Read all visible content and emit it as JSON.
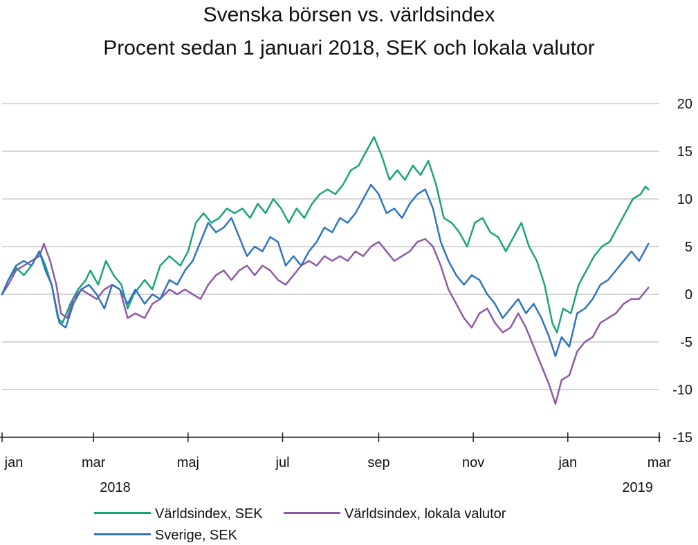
{
  "title": "Svenska börsen vs. världsindex",
  "subtitle": "Procent sedan 1 januari 2018, SEK och lokala valutor",
  "chart_data": {
    "type": "line",
    "title": "Svenska börsen vs. världsindex",
    "subtitle": "Procent sedan 1 januari 2018, SEK och lokala valutor",
    "xlabel": "",
    "ylabel": "",
    "ylim": [
      -15,
      20
    ],
    "y_ticks": [
      20,
      15,
      10,
      5,
      0,
      -5,
      -10,
      -15
    ],
    "x_range": [
      "2018-01-01",
      "2019-03-01"
    ],
    "x_ticks": [
      {
        "date": "2018-01-01",
        "label": "jan"
      },
      {
        "date": "2018-03-01",
        "label": "mar"
      },
      {
        "date": "2018-05-01",
        "label": "maj"
      },
      {
        "date": "2018-07-01",
        "label": "jul"
      },
      {
        "date": "2018-09-01",
        "label": "sep"
      },
      {
        "date": "2018-11-01",
        "label": "nov"
      },
      {
        "date": "2019-01-01",
        "label": "jan"
      },
      {
        "date": "2019-03-01",
        "label": "mar"
      }
    ],
    "year_labels": [
      {
        "date": "2018-03-15",
        "label": "2018"
      },
      {
        "date": "2019-02-15",
        "label": "2019"
      }
    ],
    "grid": "horizontal",
    "legend_position": "bottom",
    "series": [
      {
        "name": "Världsindex, SEK",
        "color": "#1aa37a",
        "points": [
          [
            "2018-01-01",
            0.0
          ],
          [
            "2018-01-05",
            1.5
          ],
          [
            "2018-01-10",
            2.8
          ],
          [
            "2018-01-15",
            2.0
          ],
          [
            "2018-01-20",
            3.0
          ],
          [
            "2018-01-25",
            4.5
          ],
          [
            "2018-01-29",
            3.0
          ],
          [
            "2018-02-02",
            1.0
          ],
          [
            "2018-02-06",
            -2.5
          ],
          [
            "2018-02-09",
            -3.0
          ],
          [
            "2018-02-14",
            -1.0
          ],
          [
            "2018-02-19",
            0.5
          ],
          [
            "2018-02-24",
            1.5
          ],
          [
            "2018-02-27",
            2.5
          ],
          [
            "2018-03-04",
            1.0
          ],
          [
            "2018-03-09",
            3.5
          ],
          [
            "2018-03-14",
            2.0
          ],
          [
            "2018-03-19",
            1.0
          ],
          [
            "2018-03-23",
            -1.5
          ],
          [
            "2018-03-27",
            0.0
          ],
          [
            "2018-04-03",
            1.5
          ],
          [
            "2018-04-08",
            0.5
          ],
          [
            "2018-04-13",
            3.0
          ],
          [
            "2018-04-19",
            4.0
          ],
          [
            "2018-04-26",
            3.0
          ],
          [
            "2018-05-01",
            4.5
          ],
          [
            "2018-05-06",
            7.5
          ],
          [
            "2018-05-11",
            8.5
          ],
          [
            "2018-05-16",
            7.5
          ],
          [
            "2018-05-21",
            8.0
          ],
          [
            "2018-05-26",
            9.0
          ],
          [
            "2018-05-31",
            8.5
          ],
          [
            "2018-06-05",
            9.0
          ],
          [
            "2018-06-10",
            8.0
          ],
          [
            "2018-06-15",
            9.5
          ],
          [
            "2018-06-20",
            8.5
          ],
          [
            "2018-06-25",
            10.0
          ],
          [
            "2018-06-30",
            9.0
          ],
          [
            "2018-07-05",
            7.5
          ],
          [
            "2018-07-10",
            9.0
          ],
          [
            "2018-07-15",
            8.0
          ],
          [
            "2018-07-20",
            9.5
          ],
          [
            "2018-07-25",
            10.5
          ],
          [
            "2018-07-30",
            11.0
          ],
          [
            "2018-08-04",
            10.5
          ],
          [
            "2018-08-09",
            11.5
          ],
          [
            "2018-08-14",
            13.0
          ],
          [
            "2018-08-19",
            13.5
          ],
          [
            "2018-08-24",
            15.0
          ],
          [
            "2018-08-29",
            16.5
          ],
          [
            "2018-09-03",
            14.5
          ],
          [
            "2018-09-08",
            12.0
          ],
          [
            "2018-09-13",
            13.0
          ],
          [
            "2018-09-18",
            12.0
          ],
          [
            "2018-09-23",
            13.5
          ],
          [
            "2018-09-28",
            12.5
          ],
          [
            "2018-10-03",
            14.0
          ],
          [
            "2018-10-08",
            11.5
          ],
          [
            "2018-10-13",
            8.0
          ],
          [
            "2018-10-18",
            7.5
          ],
          [
            "2018-10-23",
            6.5
          ],
          [
            "2018-10-28",
            5.0
          ],
          [
            "2018-11-02",
            7.5
          ],
          [
            "2018-11-07",
            8.0
          ],
          [
            "2018-11-12",
            6.5
          ],
          [
            "2018-11-17",
            6.0
          ],
          [
            "2018-11-22",
            4.5
          ],
          [
            "2018-11-27",
            6.0
          ],
          [
            "2018-12-02",
            7.5
          ],
          [
            "2018-12-07",
            5.0
          ],
          [
            "2018-12-12",
            3.5
          ],
          [
            "2018-12-17",
            1.0
          ],
          [
            "2018-12-22",
            -3.0
          ],
          [
            "2018-12-25",
            -4.0
          ],
          [
            "2018-12-29",
            -1.5
          ],
          [
            "2019-01-03",
            -2.0
          ],
          [
            "2019-01-08",
            1.0
          ],
          [
            "2019-01-13",
            2.5
          ],
          [
            "2019-01-18",
            4.0
          ],
          [
            "2019-01-23",
            5.0
          ],
          [
            "2019-01-28",
            5.5
          ],
          [
            "2019-02-02",
            7.0
          ],
          [
            "2019-02-07",
            8.5
          ],
          [
            "2019-02-12",
            10.0
          ],
          [
            "2019-02-17",
            10.5
          ],
          [
            "2019-02-20",
            11.3
          ],
          [
            "2019-02-22",
            11.0
          ]
        ]
      },
      {
        "name": "Världsindex, lokala valutor",
        "color": "#8e5aa6",
        "points": [
          [
            "2018-01-01",
            0.0
          ],
          [
            "2018-01-05",
            1.0
          ],
          [
            "2018-01-10",
            2.5
          ],
          [
            "2018-01-15",
            3.0
          ],
          [
            "2018-01-20",
            3.5
          ],
          [
            "2018-01-25",
            4.0
          ],
          [
            "2018-01-28",
            5.3
          ],
          [
            "2018-02-01",
            3.5
          ],
          [
            "2018-02-05",
            1.0
          ],
          [
            "2018-02-08",
            -2.0
          ],
          [
            "2018-02-12",
            -2.5
          ],
          [
            "2018-02-16",
            -0.5
          ],
          [
            "2018-02-21",
            0.5
          ],
          [
            "2018-02-26",
            0.0
          ],
          [
            "2018-03-03",
            -0.5
          ],
          [
            "2018-03-08",
            0.5
          ],
          [
            "2018-03-13",
            1.0
          ],
          [
            "2018-03-18",
            0.5
          ],
          [
            "2018-03-23",
            -2.5
          ],
          [
            "2018-03-28",
            -2.0
          ],
          [
            "2018-04-03",
            -2.5
          ],
          [
            "2018-04-08",
            -1.0
          ],
          [
            "2018-04-13",
            -0.5
          ],
          [
            "2018-04-19",
            0.5
          ],
          [
            "2018-04-24",
            0.0
          ],
          [
            "2018-04-29",
            0.5
          ],
          [
            "2018-05-04",
            0.0
          ],
          [
            "2018-05-09",
            -0.5
          ],
          [
            "2018-05-14",
            1.0
          ],
          [
            "2018-05-19",
            2.0
          ],
          [
            "2018-05-24",
            2.5
          ],
          [
            "2018-05-29",
            1.5
          ],
          [
            "2018-06-03",
            2.5
          ],
          [
            "2018-06-08",
            3.0
          ],
          [
            "2018-06-13",
            2.0
          ],
          [
            "2018-06-18",
            3.0
          ],
          [
            "2018-06-23",
            2.5
          ],
          [
            "2018-06-28",
            1.5
          ],
          [
            "2018-07-03",
            1.0
          ],
          [
            "2018-07-08",
            2.0
          ],
          [
            "2018-07-13",
            3.0
          ],
          [
            "2018-07-18",
            3.5
          ],
          [
            "2018-07-23",
            3.0
          ],
          [
            "2018-07-28",
            4.0
          ],
          [
            "2018-08-02",
            3.5
          ],
          [
            "2018-08-07",
            4.0
          ],
          [
            "2018-08-12",
            3.5
          ],
          [
            "2018-08-17",
            4.5
          ],
          [
            "2018-08-22",
            4.0
          ],
          [
            "2018-08-27",
            5.0
          ],
          [
            "2018-09-01",
            5.5
          ],
          [
            "2018-09-06",
            4.5
          ],
          [
            "2018-09-11",
            3.5
          ],
          [
            "2018-09-16",
            4.0
          ],
          [
            "2018-09-21",
            4.5
          ],
          [
            "2018-09-26",
            5.5
          ],
          [
            "2018-10-01",
            5.8
          ],
          [
            "2018-10-06",
            5.0
          ],
          [
            "2018-10-11",
            3.0
          ],
          [
            "2018-10-16",
            0.5
          ],
          [
            "2018-10-21",
            -1.0
          ],
          [
            "2018-10-26",
            -2.5
          ],
          [
            "2018-10-31",
            -3.5
          ],
          [
            "2018-11-05",
            -2.0
          ],
          [
            "2018-11-10",
            -1.5
          ],
          [
            "2018-11-15",
            -3.0
          ],
          [
            "2018-11-20",
            -4.0
          ],
          [
            "2018-11-25",
            -3.5
          ],
          [
            "2018-11-30",
            -2.0
          ],
          [
            "2018-12-05",
            -3.5
          ],
          [
            "2018-12-10",
            -5.5
          ],
          [
            "2018-12-15",
            -7.5
          ],
          [
            "2018-12-20",
            -9.5
          ],
          [
            "2018-12-24",
            -11.5
          ],
          [
            "2018-12-28",
            -9.0
          ],
          [
            "2019-01-02",
            -8.5
          ],
          [
            "2019-01-07",
            -6.0
          ],
          [
            "2019-01-12",
            -5.0
          ],
          [
            "2019-01-17",
            -4.5
          ],
          [
            "2019-01-22",
            -3.0
          ],
          [
            "2019-01-27",
            -2.5
          ],
          [
            "2019-02-01",
            -2.0
          ],
          [
            "2019-02-06",
            -1.0
          ],
          [
            "2019-02-11",
            -0.5
          ],
          [
            "2019-02-16",
            -0.5
          ],
          [
            "2019-02-22",
            0.7
          ]
        ]
      },
      {
        "name": "Sverige, SEK",
        "color": "#2f74c0",
        "points": [
          [
            "2018-01-01",
            0.0
          ],
          [
            "2018-01-05",
            1.5
          ],
          [
            "2018-01-10",
            3.0
          ],
          [
            "2018-01-15",
            3.5
          ],
          [
            "2018-01-20",
            3.0
          ],
          [
            "2018-01-25",
            4.5
          ],
          [
            "2018-01-29",
            2.5
          ],
          [
            "2018-02-02",
            1.0
          ],
          [
            "2018-02-07",
            -3.0
          ],
          [
            "2018-02-11",
            -3.5
          ],
          [
            "2018-02-16",
            -1.0
          ],
          [
            "2018-02-21",
            0.5
          ],
          [
            "2018-02-26",
            1.0
          ],
          [
            "2018-03-03",
            0.0
          ],
          [
            "2018-03-08",
            -1.5
          ],
          [
            "2018-03-13",
            1.0
          ],
          [
            "2018-03-18",
            0.5
          ],
          [
            "2018-03-23",
            -1.0
          ],
          [
            "2018-03-28",
            0.5
          ],
          [
            "2018-04-03",
            -1.0
          ],
          [
            "2018-04-08",
            0.0
          ],
          [
            "2018-04-13",
            -0.5
          ],
          [
            "2018-04-19",
            1.5
          ],
          [
            "2018-04-24",
            1.0
          ],
          [
            "2018-04-29",
            2.5
          ],
          [
            "2018-05-04",
            3.5
          ],
          [
            "2018-05-09",
            5.5
          ],
          [
            "2018-05-14",
            7.5
          ],
          [
            "2018-05-19",
            6.5
          ],
          [
            "2018-05-24",
            7.0
          ],
          [
            "2018-05-29",
            8.0
          ],
          [
            "2018-06-03",
            6.0
          ],
          [
            "2018-06-08",
            4.0
          ],
          [
            "2018-06-13",
            5.0
          ],
          [
            "2018-06-18",
            4.5
          ],
          [
            "2018-06-23",
            6.0
          ],
          [
            "2018-06-28",
            5.5
          ],
          [
            "2018-07-03",
            3.0
          ],
          [
            "2018-07-08",
            4.0
          ],
          [
            "2018-07-13",
            3.0
          ],
          [
            "2018-07-18",
            4.5
          ],
          [
            "2018-07-23",
            5.5
          ],
          [
            "2018-07-28",
            7.0
          ],
          [
            "2018-08-02",
            6.5
          ],
          [
            "2018-08-07",
            8.0
          ],
          [
            "2018-08-12",
            7.5
          ],
          [
            "2018-08-17",
            8.5
          ],
          [
            "2018-08-22",
            10.0
          ],
          [
            "2018-08-27",
            11.5
          ],
          [
            "2018-09-01",
            10.5
          ],
          [
            "2018-09-06",
            8.5
          ],
          [
            "2018-09-11",
            9.0
          ],
          [
            "2018-09-16",
            8.0
          ],
          [
            "2018-09-21",
            9.5
          ],
          [
            "2018-09-26",
            10.5
          ],
          [
            "2018-10-01",
            11.0
          ],
          [
            "2018-10-06",
            9.0
          ],
          [
            "2018-10-11",
            5.5
          ],
          [
            "2018-10-16",
            3.5
          ],
          [
            "2018-10-21",
            2.0
          ],
          [
            "2018-10-26",
            1.0
          ],
          [
            "2018-10-31",
            2.0
          ],
          [
            "2018-11-05",
            1.5
          ],
          [
            "2018-11-10",
            0.0
          ],
          [
            "2018-11-15",
            -1.0
          ],
          [
            "2018-11-20",
            -2.5
          ],
          [
            "2018-11-25",
            -1.5
          ],
          [
            "2018-11-30",
            -0.5
          ],
          [
            "2018-12-05",
            -2.0
          ],
          [
            "2018-12-10",
            -1.0
          ],
          [
            "2018-12-15",
            -2.5
          ],
          [
            "2018-12-20",
            -4.5
          ],
          [
            "2018-12-24",
            -6.5
          ],
          [
            "2018-12-28",
            -4.5
          ],
          [
            "2019-01-02",
            -5.5
          ],
          [
            "2019-01-07",
            -2.0
          ],
          [
            "2019-01-12",
            -1.5
          ],
          [
            "2019-01-17",
            -0.5
          ],
          [
            "2019-01-22",
            1.0
          ],
          [
            "2019-01-27",
            1.5
          ],
          [
            "2019-02-01",
            2.5
          ],
          [
            "2019-02-06",
            3.5
          ],
          [
            "2019-02-11",
            4.5
          ],
          [
            "2019-02-16",
            3.5
          ],
          [
            "2019-02-22",
            5.3
          ]
        ]
      }
    ]
  },
  "legend": [
    {
      "label": "Världsindex, SEK",
      "color": "#1aa37a"
    },
    {
      "label": "Världsindex, lokala valutor",
      "color": "#8e5aa6"
    },
    {
      "label": "Sverige, SEK",
      "color": "#2f74c0"
    }
  ]
}
